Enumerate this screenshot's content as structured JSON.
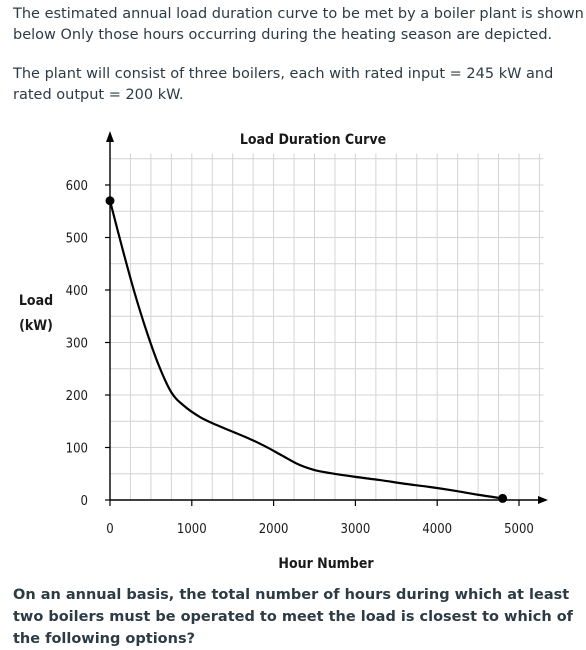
{
  "text": {
    "paragraph1": "The estimated annual load duration curve to be met by a boiler plant is shown below Only those hours occurring during the heating season are depicted.",
    "paragraph2": "The plant will consist of three boilers, each with rated input = 245 kW and rated output = 200 kW.",
    "question": "On an annual basis, the total number of hours during which at least two boilers must be operated to meet the load is closest to which of the following options?"
  },
  "chart_data": {
    "type": "line",
    "title": "Load Duration Curve",
    "xlabel": "Hour Number",
    "ylabel_line1": "Load",
    "ylabel_line2": "(kW)",
    "xlim": [
      0,
      5300
    ],
    "ylim": [
      0,
      660
    ],
    "x_ticks": [
      "0",
      "1000",
      "2000",
      "3000",
      "4000",
      "5000"
    ],
    "y_ticks": [
      "0",
      "100",
      "200",
      "300",
      "400",
      "500",
      "600"
    ],
    "grid": true,
    "series": [
      {
        "x": [
          0,
          150,
          300,
          450,
          600,
          750,
          900,
          1100,
          1300,
          1500,
          1700,
          1900,
          2100,
          2300,
          2500,
          2700,
          3000,
          3300,
          3600,
          3900,
          4200,
          4500,
          4800
        ],
        "y": [
          570,
          480,
          395,
          320,
          255,
          205,
          180,
          158,
          143,
          130,
          117,
          102,
          85,
          68,
          57,
          51,
          44,
          38,
          31,
          25,
          18,
          10,
          3
        ]
      }
    ],
    "markers": [
      {
        "x": 0,
        "y": 570
      },
      {
        "x": 4800,
        "y": 3
      }
    ],
    "colors": {
      "line": "#000000",
      "grid": "#d4d4d4",
      "axis": "#000000"
    }
  }
}
